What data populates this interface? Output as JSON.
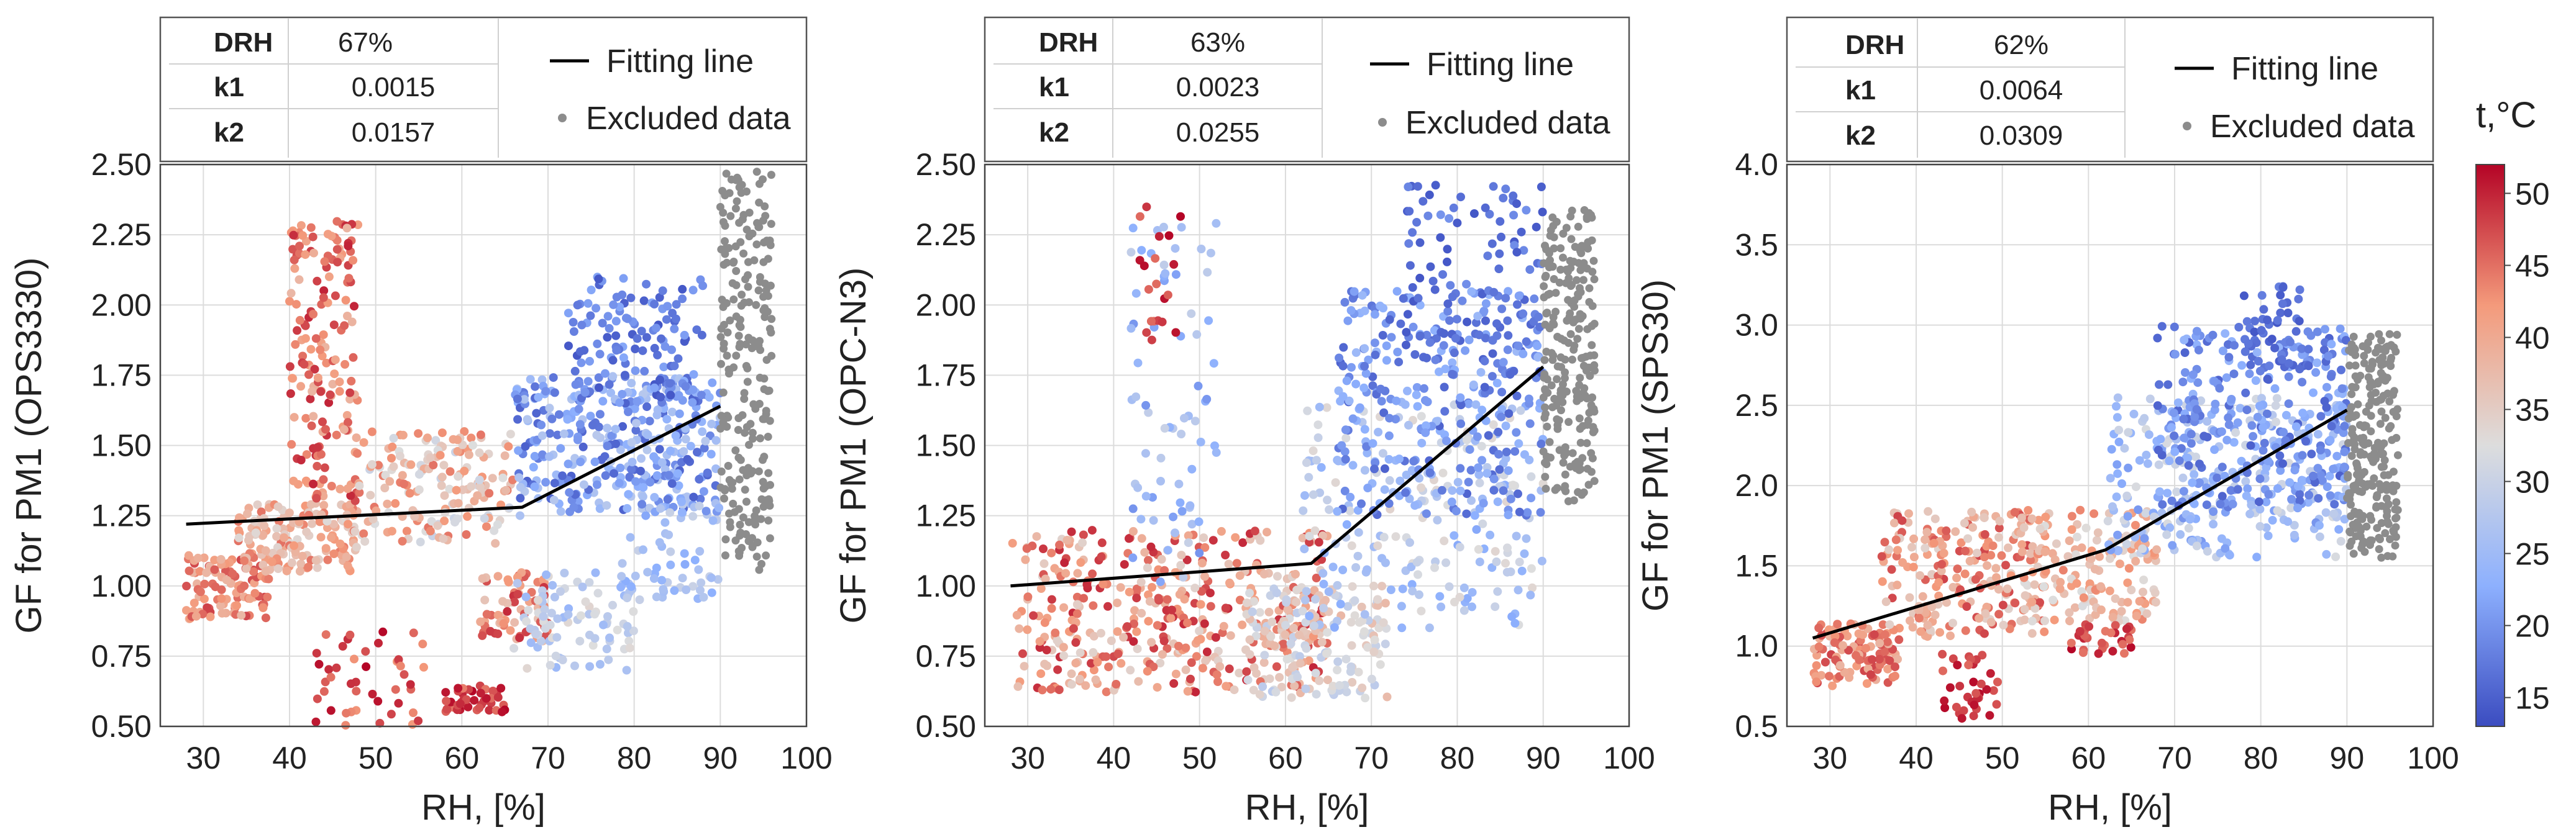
{
  "chart_data": [
    {
      "type": "scatter",
      "title": "",
      "xlabel": "RH, [%]",
      "ylabel": "GF for PM1 (OPS3330)",
      "xlim": [
        25,
        100
      ],
      "ylim": [
        0.5,
        2.5
      ],
      "xticks": [
        30,
        40,
        50,
        60,
        70,
        80,
        90,
        100
      ],
      "yticks": [
        "0.50",
        "0.75",
        "1.00",
        "1.25",
        "1.50",
        "1.75",
        "2.00",
        "2.25",
        "2.50"
      ],
      "info_table": [
        {
          "key": "DRH",
          "value": "67%"
        },
        {
          "key": "k1",
          "value": "0.0015"
        },
        {
          "key": "k2",
          "value": "0.0157"
        }
      ],
      "legend": {
        "fit_label": "Fitting line",
        "excluded_label": "Excluded data"
      },
      "fitting_line": [
        [
          28,
          1.22
        ],
        [
          67,
          1.28
        ],
        [
          90,
          1.64
        ]
      ],
      "clusters": [
        {
          "x": [
            28,
            38
          ],
          "y": [
            0.88,
            1.12
          ],
          "t": [
            38,
            48
          ],
          "n": 110
        },
        {
          "x": [
            34,
            48
          ],
          "y": [
            1.05,
            1.3
          ],
          "t": [
            33,
            45
          ],
          "n": 160
        },
        {
          "x": [
            40,
            48
          ],
          "y": [
            1.3,
            2.3
          ],
          "t": [
            38,
            50
          ],
          "n": 170
        },
        {
          "x": [
            43,
            56
          ],
          "y": [
            0.5,
            0.85
          ],
          "t": [
            42,
            52
          ],
          "n": 45
        },
        {
          "x": [
            48,
            66
          ],
          "y": [
            1.15,
            1.55
          ],
          "t": [
            30,
            45
          ],
          "n": 170
        },
        {
          "x": [
            58,
            65
          ],
          "y": [
            0.55,
            0.65
          ],
          "t": [
            44,
            52
          ],
          "n": 45
        },
        {
          "x": [
            62,
            70
          ],
          "y": [
            0.8,
            1.05
          ],
          "t": [
            36,
            50
          ],
          "n": 70
        },
        {
          "x": [
            66,
            80
          ],
          "y": [
            0.7,
            1.05
          ],
          "t": [
            24,
            34
          ],
          "n": 90
        },
        {
          "x": [
            66,
            90
          ],
          "y": [
            1.25,
            1.75
          ],
          "t": [
            15,
            28
          ],
          "n": 350
        },
        {
          "x": [
            72,
            88
          ],
          "y": [
            1.65,
            2.1
          ],
          "t": [
            14,
            22
          ],
          "n": 130
        },
        {
          "x": [
            78,
            90
          ],
          "y": [
            0.95,
            1.3
          ],
          "t": [
            22,
            30
          ],
          "n": 60
        }
      ],
      "excluded": {
        "x": [
          90,
          96
        ],
        "y": [
          1.05,
          2.48
        ],
        "n": 230
      }
    },
    {
      "type": "scatter",
      "title": "",
      "xlabel": "RH, [%]",
      "ylabel": "GF for PM1 (OPC-N3)",
      "xlim": [
        25,
        100
      ],
      "ylim": [
        0.5,
        2.5
      ],
      "xticks": [
        30,
        40,
        50,
        60,
        70,
        80,
        90,
        100
      ],
      "yticks": [
        "0.50",
        "0.75",
        "1.00",
        "1.25",
        "1.50",
        "1.75",
        "2.00",
        "2.25",
        "2.50"
      ],
      "info_table": [
        {
          "key": "DRH",
          "value": "63%"
        },
        {
          "key": "k1",
          "value": "0.0023"
        },
        {
          "key": "k2",
          "value": "0.0255"
        }
      ],
      "legend": {
        "fit_label": "Fitting line",
        "excluded_label": "Excluded data"
      },
      "fitting_line": [
        [
          28,
          1.0
        ],
        [
          63,
          1.08
        ],
        [
          90,
          1.78
        ]
      ],
      "clusters": [
        {
          "x": [
            28,
            65
          ],
          "y": [
            0.62,
            1.2
          ],
          "t": [
            34,
            50
          ],
          "n": 420
        },
        {
          "x": [
            42,
            52
          ],
          "y": [
            1.0,
            2.3
          ],
          "t": [
            20,
            30
          ],
          "n": 70
        },
        {
          "x": [
            43,
            48
          ],
          "y": [
            1.85,
            2.35
          ],
          "t": [
            45,
            52
          ],
          "n": 20
        },
        {
          "x": [
            55,
            72
          ],
          "y": [
            0.6,
            1.0
          ],
          "t": [
            28,
            38
          ],
          "n": 150
        },
        {
          "x": [
            62,
            90
          ],
          "y": [
            0.85,
            1.65
          ],
          "t": [
            22,
            34
          ],
          "n": 220
        },
        {
          "x": [
            66,
            90
          ],
          "y": [
            1.25,
            2.05
          ],
          "t": [
            15,
            25
          ],
          "n": 300
        },
        {
          "x": [
            74,
            90
          ],
          "y": [
            1.75,
            2.45
          ],
          "t": [
            14,
            20
          ],
          "n": 100
        }
      ],
      "excluded": {
        "x": [
          90,
          96
        ],
        "y": [
          1.3,
          2.35
        ],
        "n": 230
      }
    },
    {
      "type": "scatter",
      "title": "",
      "xlabel": "RH, [%]",
      "ylabel": "GF for PM1 (SPS30)",
      "xlim": [
        25,
        100
      ],
      "ylim": [
        0.5,
        4.0
      ],
      "xticks": [
        30,
        40,
        50,
        60,
        70,
        80,
        90,
        100
      ],
      "yticks": [
        "0.5",
        "1.0",
        "1.5",
        "2.0",
        "2.5",
        "3.0",
        "3.5",
        "4.0"
      ],
      "info_table": [
        {
          "key": "DRH",
          "value": "62%"
        },
        {
          "key": "k1",
          "value": "0.0064"
        },
        {
          "key": "k2",
          "value": "0.0309"
        }
      ],
      "legend": {
        "fit_label": "Fitting line",
        "excluded_label": "Excluded data"
      },
      "fitting_line": [
        [
          28,
          1.05
        ],
        [
          62,
          1.6
        ],
        [
          90,
          2.47
        ]
      ],
      "clusters": [
        {
          "x": [
            28,
            38
          ],
          "y": [
            0.75,
            1.15
          ],
          "t": [
            38,
            48
          ],
          "n": 110
        },
        {
          "x": [
            36,
            55
          ],
          "y": [
            1.05,
            1.85
          ],
          "t": [
            34,
            48
          ],
          "n": 220
        },
        {
          "x": [
            43,
            50
          ],
          "y": [
            0.55,
            0.95
          ],
          "t": [
            45,
            52
          ],
          "n": 35
        },
        {
          "x": [
            52,
            68
          ],
          "y": [
            1.15,
            1.85
          ],
          "t": [
            32,
            44
          ],
          "n": 160
        },
        {
          "x": [
            58,
            65
          ],
          "y": [
            0.95,
            1.15
          ],
          "t": [
            44,
            52
          ],
          "n": 30
        },
        {
          "x": [
            62,
            90
          ],
          "y": [
            1.55,
            2.55
          ],
          "t": [
            20,
            32
          ],
          "n": 280
        },
        {
          "x": [
            68,
            90
          ],
          "y": [
            1.85,
            3.0
          ],
          "t": [
            15,
            24
          ],
          "n": 280
        },
        {
          "x": [
            78,
            86
          ],
          "y": [
            2.7,
            3.3
          ],
          "t": [
            14,
            18
          ],
          "n": 50
        }
      ],
      "excluded": {
        "x": [
          90,
          96
        ],
        "y": [
          1.55,
          2.95
        ],
        "n": 230
      }
    }
  ],
  "colorbar": {
    "label": "t,°C",
    "range": [
      13,
      52
    ],
    "ticks": [
      15,
      20,
      25,
      30,
      35,
      40,
      45,
      50
    ]
  },
  "colors": {
    "cool": "#3b4cc0",
    "neutral": "#dddddd",
    "warm": "#b40426",
    "excluded": "#8c8c8c",
    "fit_line": "#000000"
  }
}
